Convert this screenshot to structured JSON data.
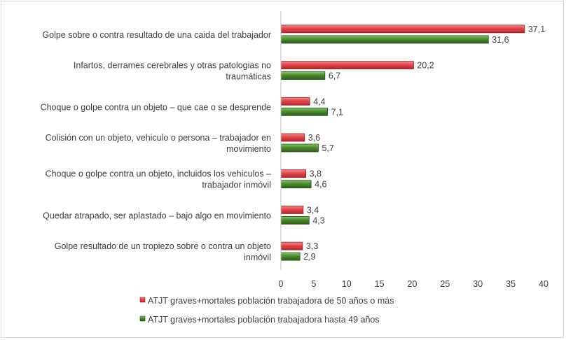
{
  "chart_data": {
    "type": "bar",
    "orientation": "horizontal",
    "categories": [
      [
        "Golpe sobre o contra resultado de una caida del trabajador"
      ],
      [
        "Infartos, derrames cerebrales y otras patologias no",
        "traumáticas"
      ],
      [
        "Choque o golpe contra un objeto – que cae o se desprende"
      ],
      [
        "Colisión con un objeto, vehiculo o persona – trabajador en",
        "movimiento"
      ],
      [
        "Choque o golpe contra un objeto, incluidos los vehiculos –",
        "trabajador inmóvil"
      ],
      [
        "Quedar atrapado, ser aplastado – bajo algo en movimiento"
      ],
      [
        "Golpe resultado de un tropiezo sobre o contra un objeto",
        "inmóvil"
      ]
    ],
    "series": [
      {
        "name": "ATJT graves+mortales población trabajadora de  50 años o más",
        "color": "#e0474c",
        "values": [
          37.1,
          20.2,
          4.4,
          3.6,
          3.8,
          3.4,
          3.3
        ],
        "labels": [
          "37,1",
          "20,2",
          "4,4",
          "3,6",
          "3,8",
          "3,4",
          "3,3"
        ]
      },
      {
        "name": "ATJT graves+mortales población trabajadora hasta 49 años",
        "color": "#4a8a2e",
        "values": [
          31.6,
          6.7,
          7.1,
          5.7,
          4.6,
          4.3,
          2.9
        ],
        "labels": [
          "31,6",
          "6,7",
          "7,1",
          "5,7",
          "4,6",
          "4,3",
          "2,9"
        ]
      }
    ],
    "xlim": [
      0,
      40
    ],
    "xticks": [
      "0",
      "5",
      "10",
      "15",
      "20",
      "25",
      "30",
      "35",
      "40"
    ],
    "grid": false,
    "legend_position": "bottom"
  }
}
